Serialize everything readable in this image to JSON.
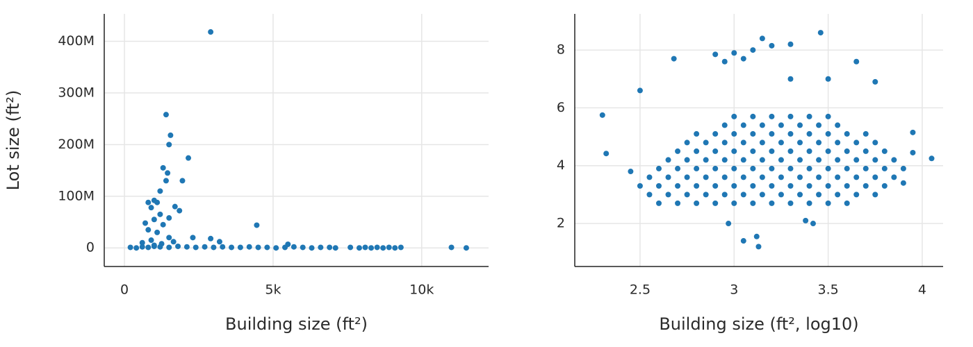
{
  "chart_data": [
    {
      "type": "scatter",
      "x_label": "Building size (ft²)",
      "y_label": "Lot size (ft²)",
      "color": "#1f77b4",
      "grid": true,
      "xlim": [
        -680,
        12250
      ],
      "ylim": [
        -36000000,
        453000000
      ],
      "xticks": [
        0,
        {
          "value": 5000,
          "label": "5k"
        },
        {
          "value": 10000,
          "label": "10k"
        }
      ],
      "yticks": [
        0,
        {
          "value": 100000000,
          "label": "100M"
        },
        {
          "value": 200000000,
          "label": "200M"
        },
        {
          "value": 300000000,
          "label": "300M"
        },
        {
          "value": 400000000,
          "label": "400M"
        }
      ],
      "x": [
        2900,
        1400,
        1550,
        1500,
        2150,
        1300,
        1450,
        1400,
        1950,
        1200,
        1000,
        800,
        1100,
        1700,
        900,
        1850,
        1200,
        1500,
        1000,
        1300,
        700,
        4450,
        800,
        1100,
        1500,
        900,
        2300,
        2900,
        3200,
        5500,
        1000,
        1250,
        600,
        1650,
        200,
        400,
        600,
        800,
        1000,
        1200,
        1500,
        1800,
        2100,
        2400,
        2700,
        3000,
        3300,
        3600,
        3900,
        4200,
        4500,
        4800,
        5100,
        5400,
        5700,
        6000,
        6300,
        6600,
        6900,
        7100,
        7600,
        7900,
        8100,
        8300,
        8500,
        8700,
        8900,
        9100,
        9300,
        11000,
        11500
      ],
      "values": [
        418000000,
        258000000,
        218000000,
        200000000,
        174000000,
        155000000,
        145000000,
        130000000,
        130000000,
        110000000,
        92000000,
        88000000,
        88000000,
        80000000,
        78000000,
        72000000,
        65000000,
        58000000,
        55000000,
        45000000,
        48000000,
        44000000,
        35000000,
        30000000,
        20000000,
        15000000,
        20000000,
        18000000,
        12000000,
        7000000,
        5000000,
        8000000,
        10000000,
        12000000,
        1000000,
        0,
        2000000,
        1000000,
        3000000,
        2000000,
        1000000,
        3000000,
        2000000,
        1000000,
        2000000,
        1000000,
        2000000,
        1000000,
        1000000,
        2000000,
        1000000,
        1000000,
        0,
        1000000,
        2000000,
        1000000,
        0,
        1000000,
        1000000,
        0,
        1000000,
        0,
        1000000,
        0,
        1000000,
        0,
        1000000,
        0,
        1000000,
        1000000,
        0
      ]
    },
    {
      "type": "scatter",
      "x_label": "Building size (ft², log10)",
      "color": "#1f77b4",
      "grid": true,
      "xlim": [
        2.153,
        4.111
      ],
      "ylim": [
        0.513,
        9.25
      ],
      "xticks": [
        2.5,
        3,
        3.5,
        4
      ],
      "yticks": [
        2,
        4,
        6,
        8
      ],
      "x": [
        2.6,
        2.7,
        2.8,
        2.9,
        3,
        3.1,
        3.2,
        3.3,
        3.4,
        3.5,
        3.6,
        2.55,
        2.65,
        2.75,
        2.85,
        2.95,
        3.05,
        3.15,
        3.25,
        3.35,
        3.45,
        3.55,
        3.65,
        3.75,
        2.5,
        2.6,
        2.7,
        2.8,
        2.9,
        3,
        3.1,
        3.2,
        3.3,
        3.4,
        3.5,
        3.6,
        3.7,
        3.8,
        2.55,
        2.65,
        2.75,
        2.85,
        2.95,
        3.05,
        3.15,
        3.25,
        3.35,
        3.45,
        3.55,
        3.65,
        3.75,
        3.85,
        2.6,
        2.7,
        2.8,
        2.9,
        3,
        3.1,
        3.2,
        3.3,
        3.4,
        3.5,
        3.6,
        3.7,
        3.8,
        3.9,
        2.65,
        2.75,
        2.85,
        2.95,
        3.05,
        3.15,
        3.25,
        3.35,
        3.45,
        3.55,
        3.65,
        3.75,
        3.85,
        2.7,
        2.8,
        2.9,
        3,
        3.1,
        3.2,
        3.3,
        3.4,
        3.5,
        3.6,
        3.7,
        3.8,
        2.75,
        2.85,
        2.95,
        3.05,
        3.15,
        3.25,
        3.35,
        3.45,
        3.55,
        3.65,
        3.75,
        2.8,
        2.9,
        3,
        3.1,
        3.2,
        3.3,
        3.4,
        3.5,
        3.6,
        3.7,
        2.95,
        3.05,
        3.15,
        3.25,
        3.35,
        3.45,
        3.55,
        3,
        3.1,
        3.2,
        3.3,
        3.4,
        3.5,
        2.3,
        2.32,
        2.5,
        2.68,
        2.9,
        2.95,
        3,
        3.05,
        3.1,
        3.15,
        3.2,
        3.3,
        3.46,
        3.65,
        3.75,
        3.5,
        3.3,
        4.05,
        3.95,
        3.95,
        3.13,
        3.05,
        3.12,
        2.97,
        3.38,
        3.42,
        2.45,
        3.9
      ],
      "values": [
        2.7,
        2.7,
        2.7,
        2.7,
        2.7,
        2.7,
        2.7,
        2.7,
        2.7,
        2.7,
        2.7,
        3,
        3,
        3,
        3,
        3,
        3,
        3,
        3,
        3,
        3,
        3,
        3,
        3,
        3.3,
        3.3,
        3.3,
        3.3,
        3.3,
        3.3,
        3.3,
        3.3,
        3.3,
        3.3,
        3.3,
        3.3,
        3.3,
        3.3,
        3.6,
        3.6,
        3.6,
        3.6,
        3.6,
        3.6,
        3.6,
        3.6,
        3.6,
        3.6,
        3.6,
        3.6,
        3.6,
        3.6,
        3.9,
        3.9,
        3.9,
        3.9,
        3.9,
        3.9,
        3.9,
        3.9,
        3.9,
        3.9,
        3.9,
        3.9,
        3.9,
        3.9,
        4.2,
        4.2,
        4.2,
        4.2,
        4.2,
        4.2,
        4.2,
        4.2,
        4.2,
        4.2,
        4.2,
        4.2,
        4.2,
        4.5,
        4.5,
        4.5,
        4.5,
        4.5,
        4.5,
        4.5,
        4.5,
        4.5,
        4.5,
        4.5,
        4.5,
        4.8,
        4.8,
        4.8,
        4.8,
        4.8,
        4.8,
        4.8,
        4.8,
        4.8,
        4.8,
        4.8,
        5.1,
        5.1,
        5.1,
        5.1,
        5.1,
        5.1,
        5.1,
        5.1,
        5.1,
        5.1,
        5.4,
        5.4,
        5.4,
        5.4,
        5.4,
        5.4,
        5.4,
        5.7,
        5.7,
        5.7,
        5.7,
        5.7,
        5.7,
        5.75,
        4.42,
        6.6,
        7.7,
        7.85,
        7.6,
        7.9,
        7.7,
        8,
        8.4,
        8.15,
        8.2,
        8.6,
        7.6,
        6.9,
        7,
        7,
        4.25,
        5.15,
        4.45,
        1.2,
        1.4,
        1.55,
        2,
        2.1,
        2,
        3.8,
        3.4
      ]
    }
  ]
}
